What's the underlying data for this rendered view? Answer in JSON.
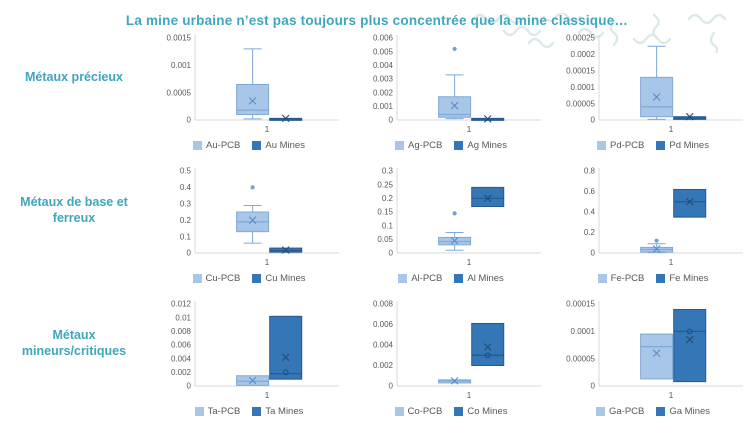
{
  "title": "La mine urbaine n’est pas toujours plus concéntrée que la mine classique…",
  "title_text": "La mine urbaine n’est pas toujours plus concentrée que la mine classique…",
  "colors": {
    "accent_teal": "#3FA6BE",
    "pcb_fill": "#A8C6E8",
    "pcb_stroke": "#7FA9D6",
    "pcb_median": "#7FA9D6",
    "pcb_mean": "#5B8CC4",
    "mines_fill": "#3476B6",
    "mines_stroke": "#27598E",
    "mines_median": "#27598E",
    "mines_mean": "#1F4E79",
    "outlier_dot": "#6FA0D6",
    "axis_line": "#D9D9D9",
    "tick_text": "#595959",
    "squiggle": "#DCE9EA"
  },
  "rows": [
    {
      "label": "Métaux précieux",
      "charts": [
        0,
        1,
        2
      ]
    },
    {
      "label": "Métaux de base et ferreux",
      "charts": [
        3,
        4,
        5
      ]
    },
    {
      "label": "Métaux mineurs/critiques",
      "charts": [
        6,
        7,
        8
      ]
    }
  ],
  "chart_data": [
    {
      "type": "boxplot",
      "metal": "Au",
      "group": "Métaux précieux",
      "x_tick": "1",
      "ylim": [
        0,
        0.0015
      ],
      "yticks": [
        "0",
        "0.0005",
        "0.001",
        "0.0015"
      ],
      "series": [
        {
          "name": "Au-PCB",
          "kind": "pcb",
          "whisker_low": 2e-05,
          "q1": 0.0001,
          "median": 0.00018,
          "q3": 0.00065,
          "whisker_high": 0.0013,
          "mean": 0.00035,
          "outliers": [],
          "points": []
        },
        {
          "name": "Au Mines",
          "kind": "mines",
          "whisker_low": null,
          "q1": 5e-06,
          "median": 1.5e-05,
          "q3": 3e-05,
          "whisker_high": null,
          "mean": 3e-05,
          "outliers": [],
          "points": []
        }
      ]
    },
    {
      "type": "boxplot",
      "metal": "Ag",
      "group": "Métaux précieux",
      "x_tick": "1",
      "ylim": [
        0,
        0.006
      ],
      "yticks": [
        "0",
        "0.001",
        "0.002",
        "0.003",
        "0.004",
        "0.005",
        "0.006"
      ],
      "series": [
        {
          "name": "Ag-PCB",
          "kind": "pcb",
          "whisker_low": 0.0001,
          "q1": 0.0002,
          "median": 0.0004,
          "q3": 0.0017,
          "whisker_high": 0.0033,
          "mean": 0.00105,
          "outliers": [
            0.0052
          ],
          "points": []
        },
        {
          "name": "Ag Mines",
          "kind": "mines",
          "whisker_low": null,
          "q1": 2e-05,
          "median": 6e-05,
          "q3": 0.00012,
          "whisker_high": null,
          "mean": 8e-05,
          "outliers": [],
          "points": []
        }
      ]
    },
    {
      "type": "boxplot",
      "metal": "Pd",
      "group": "Métaux précieux",
      "x_tick": "1",
      "ylim": [
        0,
        0.00025
      ],
      "yticks": [
        "0",
        "0.00005",
        "0.0001",
        "0.00015",
        "0.0002",
        "0.00025"
      ],
      "series": [
        {
          "name": "Pd-PCB",
          "kind": "pcb",
          "whisker_low": 2e-06,
          "q1": 1e-05,
          "median": 4e-05,
          "q3": 0.00013,
          "whisker_high": 0.000225,
          "mean": 7e-05,
          "outliers": [],
          "points": []
        },
        {
          "name": "Pd Mines",
          "kind": "mines",
          "whisker_low": null,
          "q1": 2e-06,
          "median": 6e-06,
          "q3": 1e-05,
          "whisker_high": null,
          "mean": 1e-05,
          "outliers": [],
          "points": []
        }
      ]
    },
    {
      "type": "boxplot",
      "metal": "Cu",
      "group": "Métaux de base et ferreux",
      "x_tick": "1",
      "ylim": [
        0,
        0.5
      ],
      "yticks": [
        "0",
        "0.1",
        "0.2",
        "0.3",
        "0.4",
        "0.5"
      ],
      "series": [
        {
          "name": "Cu-PCB",
          "kind": "pcb",
          "whisker_low": 0.06,
          "q1": 0.13,
          "median": 0.19,
          "q3": 0.25,
          "whisker_high": 0.29,
          "mean": 0.2,
          "outliers": [
            0.4
          ],
          "points": []
        },
        {
          "name": "Cu Mines",
          "kind": "mines",
          "whisker_low": null,
          "q1": 0.005,
          "median": 0.015,
          "q3": 0.03,
          "whisker_high": null,
          "mean": 0.018,
          "outliers": [],
          "points": []
        }
      ]
    },
    {
      "type": "boxplot",
      "metal": "Al",
      "group": "Métaux de base et ferreux",
      "x_tick": "1",
      "ylim": [
        0,
        0.3
      ],
      "yticks": [
        "0",
        "0.05",
        "0.1",
        "0.15",
        "0.2",
        "0.25",
        "0.3"
      ],
      "series": [
        {
          "name": "Al-PCB",
          "kind": "pcb",
          "whisker_low": 0.01,
          "q1": 0.03,
          "median": 0.042,
          "q3": 0.057,
          "whisker_high": 0.075,
          "mean": 0.045,
          "outliers": [
            0.145
          ],
          "points": []
        },
        {
          "name": "Al Mines",
          "kind": "mines",
          "whisker_low": null,
          "q1": 0.17,
          "median": 0.2,
          "q3": 0.24,
          "whisker_high": null,
          "mean": 0.2,
          "outliers": [],
          "points": []
        }
      ]
    },
    {
      "type": "boxplot",
      "metal": "Fe",
      "group": "Métaux de base et ferreux",
      "x_tick": "1",
      "ylim": [
        0,
        0.8
      ],
      "yticks": [
        "0",
        "0.2",
        "0.4",
        "0.6",
        "0.8"
      ],
      "series": [
        {
          "name": "Fe-PCB",
          "kind": "pcb",
          "whisker_low": 0.005,
          "q1": 0.01,
          "median": 0.035,
          "q3": 0.055,
          "whisker_high": 0.09,
          "mean": 0.04,
          "outliers": [
            0.12
          ],
          "points": []
        },
        {
          "name": "Fe Mines",
          "kind": "mines",
          "whisker_low": null,
          "q1": 0.35,
          "median": 0.5,
          "q3": 0.62,
          "whisker_high": null,
          "mean": 0.5,
          "outliers": [],
          "points": []
        }
      ]
    },
    {
      "type": "boxplot",
      "metal": "Ta",
      "group": "Métaux mineurs/critiques",
      "x_tick": "1",
      "ylim": [
        0,
        0.012
      ],
      "yticks": [
        "0",
        "0.002",
        "0.004",
        "0.006",
        "0.008",
        "0.01",
        "0.012"
      ],
      "series": [
        {
          "name": "Ta-PCB",
          "kind": "pcb",
          "whisker_low": null,
          "q1": 0.0001,
          "median": 0.0007,
          "q3": 0.0015,
          "whisker_high": null,
          "mean": 0.0008,
          "outliers": [],
          "points": []
        },
        {
          "name": "Ta Mines",
          "kind": "mines",
          "whisker_low": null,
          "q1": 0.001,
          "median": 0.0018,
          "q3": 0.0102,
          "whisker_high": null,
          "mean": 0.0042,
          "outliers": [],
          "points": [
            0.002
          ]
        }
      ]
    },
    {
      "type": "boxplot",
      "metal": "Co",
      "group": "Métaux mineurs/critiques",
      "x_tick": "1",
      "ylim": [
        0,
        0.008
      ],
      "yticks": [
        "0",
        "0.002",
        "0.004",
        "0.006",
        "0.008"
      ],
      "series": [
        {
          "name": "Co-PCB",
          "kind": "pcb",
          "whisker_low": null,
          "q1": 0.0003,
          "median": 0.0005,
          "q3": 0.0006,
          "whisker_high": null,
          "mean": 0.0005,
          "outliers": [],
          "points": []
        },
        {
          "name": "Co Mines",
          "kind": "mines",
          "whisker_low": null,
          "q1": 0.002,
          "median": 0.003,
          "q3": 0.0061,
          "whisker_high": null,
          "mean": 0.0038,
          "outliers": [],
          "points": [
            0.003
          ]
        }
      ]
    },
    {
      "type": "boxplot",
      "metal": "Ga",
      "group": "Métaux mineurs/critiques",
      "x_tick": "1",
      "ylim": [
        0,
        0.00015
      ],
      "yticks": [
        "0",
        "0.00005",
        "0.0001",
        "0.00015"
      ],
      "series": [
        {
          "name": "Ga-PCB",
          "kind": "pcb",
          "whisker_low": null,
          "q1": 1.3e-05,
          "median": 7.2e-05,
          "q3": 9.5e-05,
          "whisker_high": null,
          "mean": 6e-05,
          "outliers": [],
          "points": []
        },
        {
          "name": "Ga Mines",
          "kind": "mines",
          "whisker_low": null,
          "q1": 8e-06,
          "median": 0.0001,
          "q3": 0.00014,
          "whisker_high": null,
          "mean": 8.5e-05,
          "outliers": [],
          "points": [
            0.0001
          ]
        }
      ]
    }
  ]
}
